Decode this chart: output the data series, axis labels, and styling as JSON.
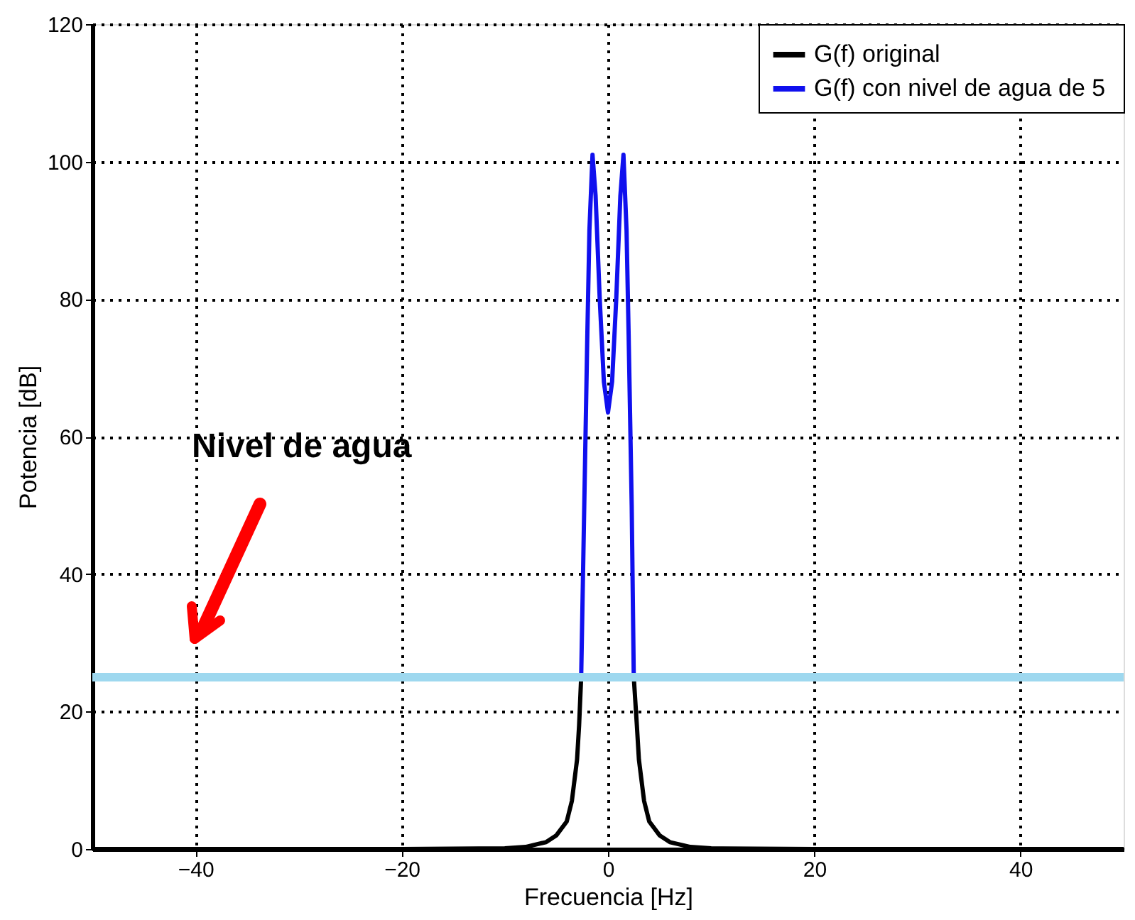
{
  "chart_data": {
    "type": "line",
    "xlabel": "Frecuencia [Hz]",
    "ylabel": "Potencia [dB]",
    "xlim": [
      -50,
      50
    ],
    "xticks": [
      -40,
      -20,
      0,
      20,
      40
    ],
    "ylim": [
      0,
      120
    ],
    "yticks": [
      0,
      20,
      40,
      60,
      80,
      100,
      120
    ],
    "grid": true,
    "legend": "top right",
    "line_style": "solid",
    "marker": "none",
    "series": [
      {
        "name": "G(f) original",
        "color": "#000000",
        "x": [
          -50,
          -20,
          -10,
          -8,
          -6,
          -5,
          -4,
          -3.5,
          -3,
          -2.8,
          -2.6,
          null,
          2.5,
          2.8,
          3,
          3.5,
          4,
          5,
          6,
          8,
          10,
          20,
          50
        ],
        "values": [
          0,
          0,
          0.1,
          0.3,
          1,
          2,
          4,
          7,
          13,
          18,
          25,
          null,
          25,
          18,
          13,
          7,
          4,
          2,
          1,
          0.3,
          0.1,
          0,
          0
        ]
      },
      {
        "name": "G(f) con nivel de agua  de 5",
        "color": "#1010ee",
        "x": [
          -2.6,
          -2.3,
          -2,
          -1.8,
          -1.5,
          -1.2,
          -0.8,
          -0.4,
          0,
          0.4,
          0.8,
          1.2,
          1.5,
          1.8,
          2,
          2.3,
          2.5
        ],
        "values": [
          25,
          50,
          75,
          90,
          101,
          95,
          80,
          68,
          63.5,
          68,
          80,
          95,
          101,
          90,
          75,
          50,
          25
        ]
      }
    ],
    "ref_lines": [
      {
        "axis": "y",
        "value": 25,
        "color": "#9ed8ef"
      }
    ],
    "annotations": [
      "Nivel de agua"
    ]
  }
}
